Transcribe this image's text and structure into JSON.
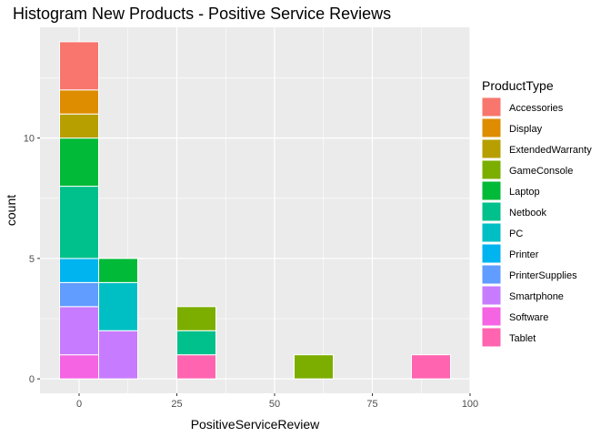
{
  "chart_data": {
    "type": "bar",
    "title": "Histogram New Products - Positive Service Reviews",
    "xlabel": "PositiveServiceReview",
    "ylabel": "count",
    "xlim": [
      -10,
      100
    ],
    "ylim": [
      -0.6,
      14.6
    ],
    "x_ticks": [
      0,
      25,
      50,
      75,
      100
    ],
    "y_ticks": [
      0,
      5,
      10
    ],
    "bin_width": 10,
    "grid": true,
    "stacked": true,
    "legend": {
      "title": "ProductType",
      "position": "right",
      "entries": [
        {
          "name": "Accessories",
          "color": "#F8766D"
        },
        {
          "name": "Display",
          "color": "#DE8C00"
        },
        {
          "name": "ExtendedWarranty",
          "color": "#B79F00"
        },
        {
          "name": "GameConsole",
          "color": "#7CAE00"
        },
        {
          "name": "Laptop",
          "color": "#00BA38"
        },
        {
          "name": "Netbook",
          "color": "#00C08B"
        },
        {
          "name": "PC",
          "color": "#00BFC4"
        },
        {
          "name": "Printer",
          "color": "#00B4F0"
        },
        {
          "name": "PrinterSupplies",
          "color": "#619CFF"
        },
        {
          "name": "Smartphone",
          "color": "#C77CFF"
        },
        {
          "name": "Software",
          "color": "#F564E3"
        },
        {
          "name": "Tablet",
          "color": "#FF64B0"
        }
      ]
    },
    "bins": [
      {
        "center": 0,
        "segments": [
          {
            "name": "Software",
            "count": 1
          },
          {
            "name": "Smartphone",
            "count": 2
          },
          {
            "name": "PrinterSupplies",
            "count": 1
          },
          {
            "name": "Printer",
            "count": 1
          },
          {
            "name": "Netbook",
            "count": 3
          },
          {
            "name": "Laptop",
            "count": 2
          },
          {
            "name": "ExtendedWarranty",
            "count": 1
          },
          {
            "name": "Display",
            "count": 1
          },
          {
            "name": "Accessories",
            "count": 2
          }
        ]
      },
      {
        "center": 10,
        "segments": [
          {
            "name": "Smartphone",
            "count": 2
          },
          {
            "name": "PC",
            "count": 2
          },
          {
            "name": "Laptop",
            "count": 1
          }
        ]
      },
      {
        "center": 30,
        "segments": [
          {
            "name": "Tablet",
            "count": 1
          },
          {
            "name": "Netbook",
            "count": 1
          },
          {
            "name": "GameConsole",
            "count": 1
          }
        ]
      },
      {
        "center": 60,
        "segments": [
          {
            "name": "GameConsole",
            "count": 1
          }
        ]
      },
      {
        "center": 90,
        "segments": [
          {
            "name": "Tablet",
            "count": 1
          }
        ]
      }
    ]
  }
}
